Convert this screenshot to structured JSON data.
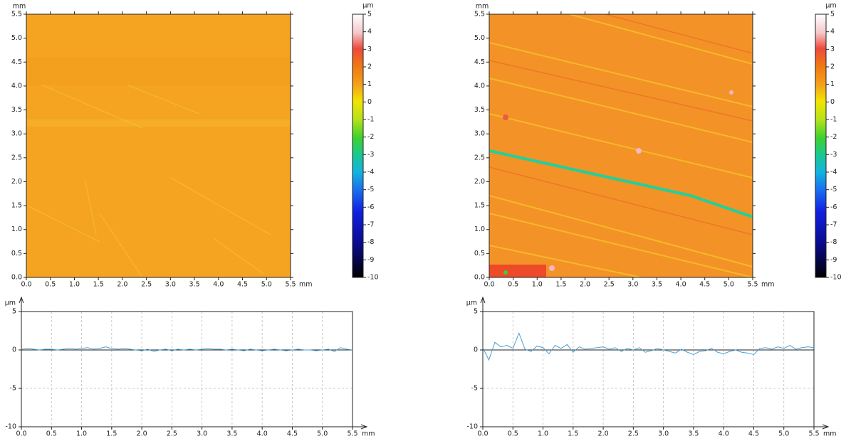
{
  "chart_data": [
    {
      "type": "heatmap",
      "x_unit": "mm",
      "y_unit": "mm",
      "xlim": [
        0,
        5.5
      ],
      "ylim": [
        0,
        5.5
      ],
      "xticks": [
        {
          "value": 0,
          "label": "0.0"
        },
        {
          "value": 0.5,
          "label": "0.5"
        },
        {
          "value": 1,
          "label": "1.0"
        },
        {
          "value": 1.5,
          "label": "1.5"
        },
        {
          "value": 2,
          "label": "2.0"
        },
        {
          "value": 2.5,
          "label": "2.5"
        },
        {
          "value": 3,
          "label": "3.0"
        },
        {
          "value": 3.5,
          "label": "3.5"
        },
        {
          "value": 4,
          "label": "4.0"
        },
        {
          "value": 4.5,
          "label": "4.5"
        },
        {
          "value": 5,
          "label": "5.0"
        },
        {
          "value": 5.5,
          "label": "5.5"
        }
      ],
      "yticks": [
        {
          "value": 0,
          "label": "0.0"
        },
        {
          "value": 0.5,
          "label": "0.5"
        },
        {
          "value": 1,
          "label": "1.0"
        },
        {
          "value": 1.5,
          "label": "1.5"
        },
        {
          "value": 2,
          "label": "2.0"
        },
        {
          "value": 2.5,
          "label": "2.5"
        },
        {
          "value": 3,
          "label": "3.0"
        },
        {
          "value": 3.5,
          "label": "3.5"
        },
        {
          "value": 4,
          "label": "4.0"
        },
        {
          "value": 4.5,
          "label": "4.5"
        },
        {
          "value": 5,
          "label": "5.0"
        },
        {
          "value": 5.5,
          "label": "5.5"
        }
      ],
      "colorbar": {
        "unit": "µm",
        "lim": [
          -10,
          5
        ],
        "ticks": [
          -10,
          -9,
          -8,
          -7,
          -6,
          -5,
          -4,
          -3,
          -2,
          -1,
          0,
          1,
          2,
          3,
          4,
          5
        ]
      }
    },
    {
      "type": "heatmap",
      "x_unit": "mm",
      "y_unit": "mm",
      "xlim": [
        0,
        5.5
      ],
      "ylim": [
        0,
        5.5
      ],
      "xticks": [
        {
          "value": 0,
          "label": "0.0"
        },
        {
          "value": 0.5,
          "label": "0.5"
        },
        {
          "value": 1,
          "label": "1.0"
        },
        {
          "value": 1.5,
          "label": "1.5"
        },
        {
          "value": 2,
          "label": "2.0"
        },
        {
          "value": 2.5,
          "label": "2.5"
        },
        {
          "value": 3,
          "label": "3.0"
        },
        {
          "value": 3.5,
          "label": "3.5"
        },
        {
          "value": 4,
          "label": "4.0"
        },
        {
          "value": 4.5,
          "label": "4.5"
        },
        {
          "value": 5,
          "label": "5.0"
        },
        {
          "value": 5.5,
          "label": "5.5"
        }
      ],
      "yticks": [
        {
          "value": 0,
          "label": "0.0"
        },
        {
          "value": 0.5,
          "label": "0.5"
        },
        {
          "value": 1,
          "label": "1.0"
        },
        {
          "value": 1.5,
          "label": "1.5"
        },
        {
          "value": 2,
          "label": "2.0"
        },
        {
          "value": 2.5,
          "label": "2.5"
        },
        {
          "value": 3,
          "label": "3.0"
        },
        {
          "value": 3.5,
          "label": "3.5"
        },
        {
          "value": 4,
          "label": "4.0"
        },
        {
          "value": 4.5,
          "label": "4.5"
        },
        {
          "value": 5,
          "label": "5.0"
        },
        {
          "value": 5.5,
          "label": "5.5"
        }
      ],
      "colorbar": {
        "unit": "µm",
        "lim": [
          -10,
          5
        ],
        "ticks": [
          -10,
          -9,
          -8,
          -7,
          -6,
          -5,
          -4,
          -3,
          -2,
          -1,
          0,
          1,
          2,
          3,
          4,
          5
        ]
      }
    },
    {
      "type": "line",
      "x_unit": "mm",
      "y_unit": "µm",
      "xlim": [
        0,
        5.5
      ],
      "ylim": [
        -10,
        5
      ],
      "grid": true,
      "color": "#4a9fd4",
      "xticks": [
        {
          "value": 0,
          "label": "0.0"
        },
        {
          "value": 0.5,
          "label": "0.5"
        },
        {
          "value": 1,
          "label": "1.0"
        },
        {
          "value": 1.5,
          "label": "1.5"
        },
        {
          "value": 2,
          "label": "2.0"
        },
        {
          "value": 2.5,
          "label": "2.5"
        },
        {
          "value": 3,
          "label": "3.0"
        },
        {
          "value": 3.5,
          "label": "3.5"
        },
        {
          "value": 4,
          "label": "4.0"
        },
        {
          "value": 4.5,
          "label": "4.5"
        },
        {
          "value": 5,
          "label": "5.0"
        },
        {
          "value": 5.5,
          "label": "5.5"
        }
      ],
      "yticks": [
        -10,
        -5,
        0,
        5
      ],
      "x": [
        0,
        0.1,
        0.2,
        0.3,
        0.4,
        0.5,
        0.6,
        0.7,
        0.8,
        0.9,
        1,
        1.1,
        1.2,
        1.3,
        1.4,
        1.5,
        1.6,
        1.7,
        1.8,
        1.9,
        2,
        2.1,
        2.2,
        2.3,
        2.4,
        2.5,
        2.6,
        2.7,
        2.8,
        2.9,
        3,
        3.1,
        3.2,
        3.3,
        3.4,
        3.5,
        3.6,
        3.7,
        3.8,
        3.9,
        4,
        4.1,
        4.2,
        4.3,
        4.4,
        4.5,
        4.6,
        4.7,
        4.8,
        4.9,
        5,
        5.1,
        5.2,
        5.3,
        5.4,
        5.5
      ],
      "values": [
        0.1,
        0.2,
        0.1,
        0,
        0.1,
        0.1,
        0,
        0.1,
        0.2,
        0.1,
        0.2,
        0.3,
        0.1,
        0.2,
        0.4,
        0.2,
        0.1,
        0.2,
        0.1,
        0,
        -0.1,
        0.1,
        -0.2,
        0,
        0.1,
        -0.1,
        0.1,
        0,
        0.1,
        0,
        0.1,
        0.2,
        0.1,
        0.1,
        0,
        0.1,
        0,
        -0.1,
        0.1,
        0,
        -0.1,
        0,
        0.1,
        0,
        -0.1,
        0,
        0.1,
        0,
        0,
        -0.1,
        0,
        0.1,
        -0.2,
        0.3,
        0.1,
        0
      ]
    },
    {
      "type": "line",
      "x_unit": "mm",
      "y_unit": "µm",
      "xlim": [
        0,
        5.5
      ],
      "ylim": [
        -10,
        5
      ],
      "grid": true,
      "color": "#4a9fd4",
      "xticks": [
        {
          "value": 0,
          "label": "0.0"
        },
        {
          "value": 0.5,
          "label": "0.5"
        },
        {
          "value": 1,
          "label": "1.0"
        },
        {
          "value": 1.5,
          "label": "1.5"
        },
        {
          "value": 2,
          "label": "2.0"
        },
        {
          "value": 2.5,
          "label": "2.5"
        },
        {
          "value": 3,
          "label": "3.0"
        },
        {
          "value": 3.5,
          "label": "3.5"
        },
        {
          "value": 4,
          "label": "4.0"
        },
        {
          "value": 4.5,
          "label": "4.5"
        },
        {
          "value": 5,
          "label": "5.0"
        },
        {
          "value": 5.5,
          "label": "5.5"
        }
      ],
      "yticks": [
        -10,
        -5,
        0,
        5
      ],
      "x": [
        0,
        0.1,
        0.2,
        0.3,
        0.4,
        0.5,
        0.6,
        0.7,
        0.8,
        0.9,
        1,
        1.1,
        1.2,
        1.3,
        1.4,
        1.5,
        1.6,
        1.7,
        1.8,
        1.9,
        2,
        2.1,
        2.2,
        2.3,
        2.4,
        2.5,
        2.6,
        2.7,
        2.8,
        2.9,
        3,
        3.1,
        3.2,
        3.3,
        3.4,
        3.5,
        3.6,
        3.7,
        3.8,
        3.9,
        4,
        4.1,
        4.2,
        4.3,
        4.4,
        4.5,
        4.6,
        4.7,
        4.8,
        4.9,
        5,
        5.1,
        5.2,
        5.3,
        5.4,
        5.5
      ],
      "values": [
        0.3,
        -1.3,
        1.0,
        0.4,
        0.6,
        0.2,
        2.2,
        0.1,
        -0.2,
        0.5,
        0.3,
        -0.5,
        0.6,
        0.2,
        0.7,
        -0.3,
        0.4,
        0.1,
        0.2,
        0.3,
        0.4,
        0.1,
        0.3,
        -0.2,
        0.2,
        0,
        0.3,
        -0.3,
        -0.1,
        0.2,
        0,
        -0.2,
        -0.4,
        0.1,
        -0.3,
        -0.6,
        -0.2,
        -0.1,
        0.2,
        -0.3,
        -0.5,
        -0.2,
        0,
        -0.3,
        -0.4,
        -0.6,
        0.2,
        0.3,
        0.1,
        0.4,
        0.2,
        0.6,
        0.1,
        0.3,
        0.4,
        0.3
      ]
    }
  ]
}
